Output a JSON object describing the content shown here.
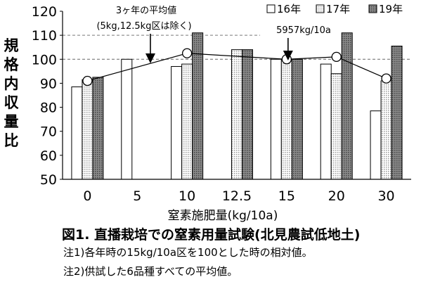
{
  "chart_data": {
    "type": "bar",
    "categories": [
      "0",
      "5",
      "10",
      "12.5",
      "15",
      "20",
      "30"
    ],
    "series": [
      {
        "name": "16年",
        "values": [
          88.5,
          100,
          97,
          null,
          100,
          98,
          78.5
        ]
      },
      {
        "name": "17年",
        "values": [
          91.5,
          null,
          98,
          104,
          100,
          94,
          91
        ]
      },
      {
        "name": "19年",
        "values": [
          92.5,
          null,
          111,
          104,
          100,
          111,
          105.5
        ]
      }
    ],
    "average_line": {
      "categories": [
        "0",
        "10",
        "15",
        "20",
        "30"
      ],
      "values": [
        91,
        102.5,
        100,
        101,
        92
      ]
    },
    "ylim": [
      50,
      120
    ],
    "yticks": [
      "50",
      "60",
      "70",
      "80",
      "90",
      "100",
      "110",
      "120"
    ],
    "xlabel": "窒素施肥量(kg/10a)",
    "ylabel": "規格内収量比",
    "gridline_label": "100",
    "annotations": [
      {
        "line1": "3ヶ年の平均値",
        "line2": "(5kg,12.5kg区は除く)"
      },
      {
        "line1": "5957kg/10a"
      }
    ]
  },
  "figure": {
    "title": "図1. 直播栽培での窒素用量試験(北見農試低地土)",
    "note1": "注1)各年時の15kg/10a区を100とした時の相対値。",
    "note2": "注2)供試した6品種すべての平均値。"
  },
  "colors": {
    "series_16": "#ffffff",
    "series_17": "#d8d8d8",
    "series_19": "#7a7a7a",
    "line": "#000000"
  }
}
